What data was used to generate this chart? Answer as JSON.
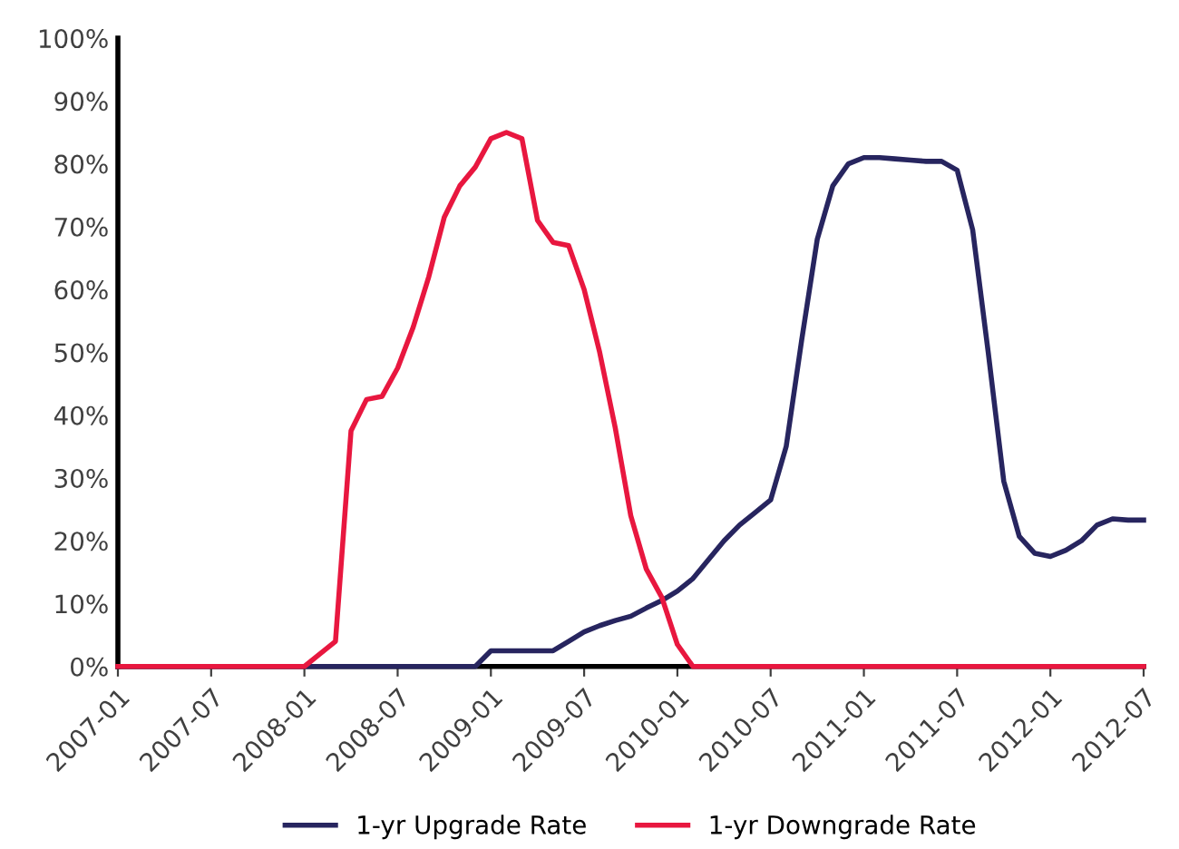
{
  "chart_data": {
    "type": "line",
    "categories": [
      "2007-01",
      null,
      null,
      null,
      null,
      null,
      "2007-07",
      null,
      null,
      null,
      null,
      null,
      "2008-01",
      null,
      null,
      null,
      null,
      null,
      "2008-07",
      null,
      null,
      null,
      null,
      null,
      "2009-01",
      null,
      null,
      null,
      null,
      null,
      "2009-07",
      null,
      null,
      null,
      null,
      null,
      "2010-01",
      null,
      null,
      null,
      null,
      null,
      "2010-07",
      null,
      null,
      null,
      null,
      null,
      "2011-01",
      null,
      null,
      null,
      null,
      null,
      "2011-07",
      null,
      null,
      null,
      null,
      null,
      "2012-01",
      null,
      null,
      null,
      null,
      null,
      "2012-07"
    ],
    "series": [
      {
        "name": "1-yr Upgrade Rate",
        "color": "#27255f",
        "values": [
          0,
          0,
          0,
          0,
          0,
          0,
          0,
          0,
          0,
          0,
          0,
          0,
          0,
          0,
          0,
          0,
          0,
          0,
          0,
          0,
          0,
          0,
          0,
          0,
          2.5,
          2.5,
          2.5,
          2.5,
          2.5,
          4,
          5.5,
          6.5,
          7.3,
          8,
          9.3,
          10.5,
          12,
          14,
          17,
          20,
          22.5,
          24.5,
          26.5,
          35,
          52,
          68,
          76.5,
          80,
          81,
          81,
          80.8,
          80.6,
          80.4,
          80.4,
          79,
          69.5,
          50,
          29.5,
          20.7,
          18,
          17.5,
          18.5,
          20,
          22.5,
          23.5,
          23.3,
          23.3
        ]
      },
      {
        "name": "1-yr Downgrade Rate",
        "color": "#e8173f",
        "values": [
          0,
          0,
          0,
          0,
          0,
          0,
          0,
          0,
          0,
          0,
          0,
          0,
          0,
          2,
          4,
          37.5,
          42.5,
          43,
          47.5,
          54,
          62,
          71.5,
          76.5,
          79.5,
          84,
          85,
          84,
          71,
          67.5,
          67,
          60,
          50,
          38,
          24,
          15.5,
          11,
          3.5,
          0,
          0,
          0,
          0,
          0,
          0,
          0,
          0,
          0,
          0,
          0,
          0,
          0,
          0,
          0,
          0,
          0,
          0,
          0,
          0,
          0,
          0,
          0,
          0,
          0,
          0,
          0,
          0,
          0,
          0
        ]
      }
    ],
    "ylim": [
      0,
      100
    ],
    "yticks": [
      {
        "value": 0,
        "label": "0%"
      },
      {
        "value": 10,
        "label": "10%"
      },
      {
        "value": 20,
        "label": "20%"
      },
      {
        "value": 30,
        "label": "30%"
      },
      {
        "value": 40,
        "label": "40%"
      },
      {
        "value": 50,
        "label": "50%"
      },
      {
        "value": 60,
        "label": "60%"
      },
      {
        "value": 70,
        "label": "70%"
      },
      {
        "value": 80,
        "label": "80%"
      },
      {
        "value": 90,
        "label": "90%"
      },
      {
        "value": 100,
        "label": "100%"
      }
    ],
    "grid": false,
    "legend": "bottom",
    "marker": "none",
    "line_style": "solid"
  }
}
